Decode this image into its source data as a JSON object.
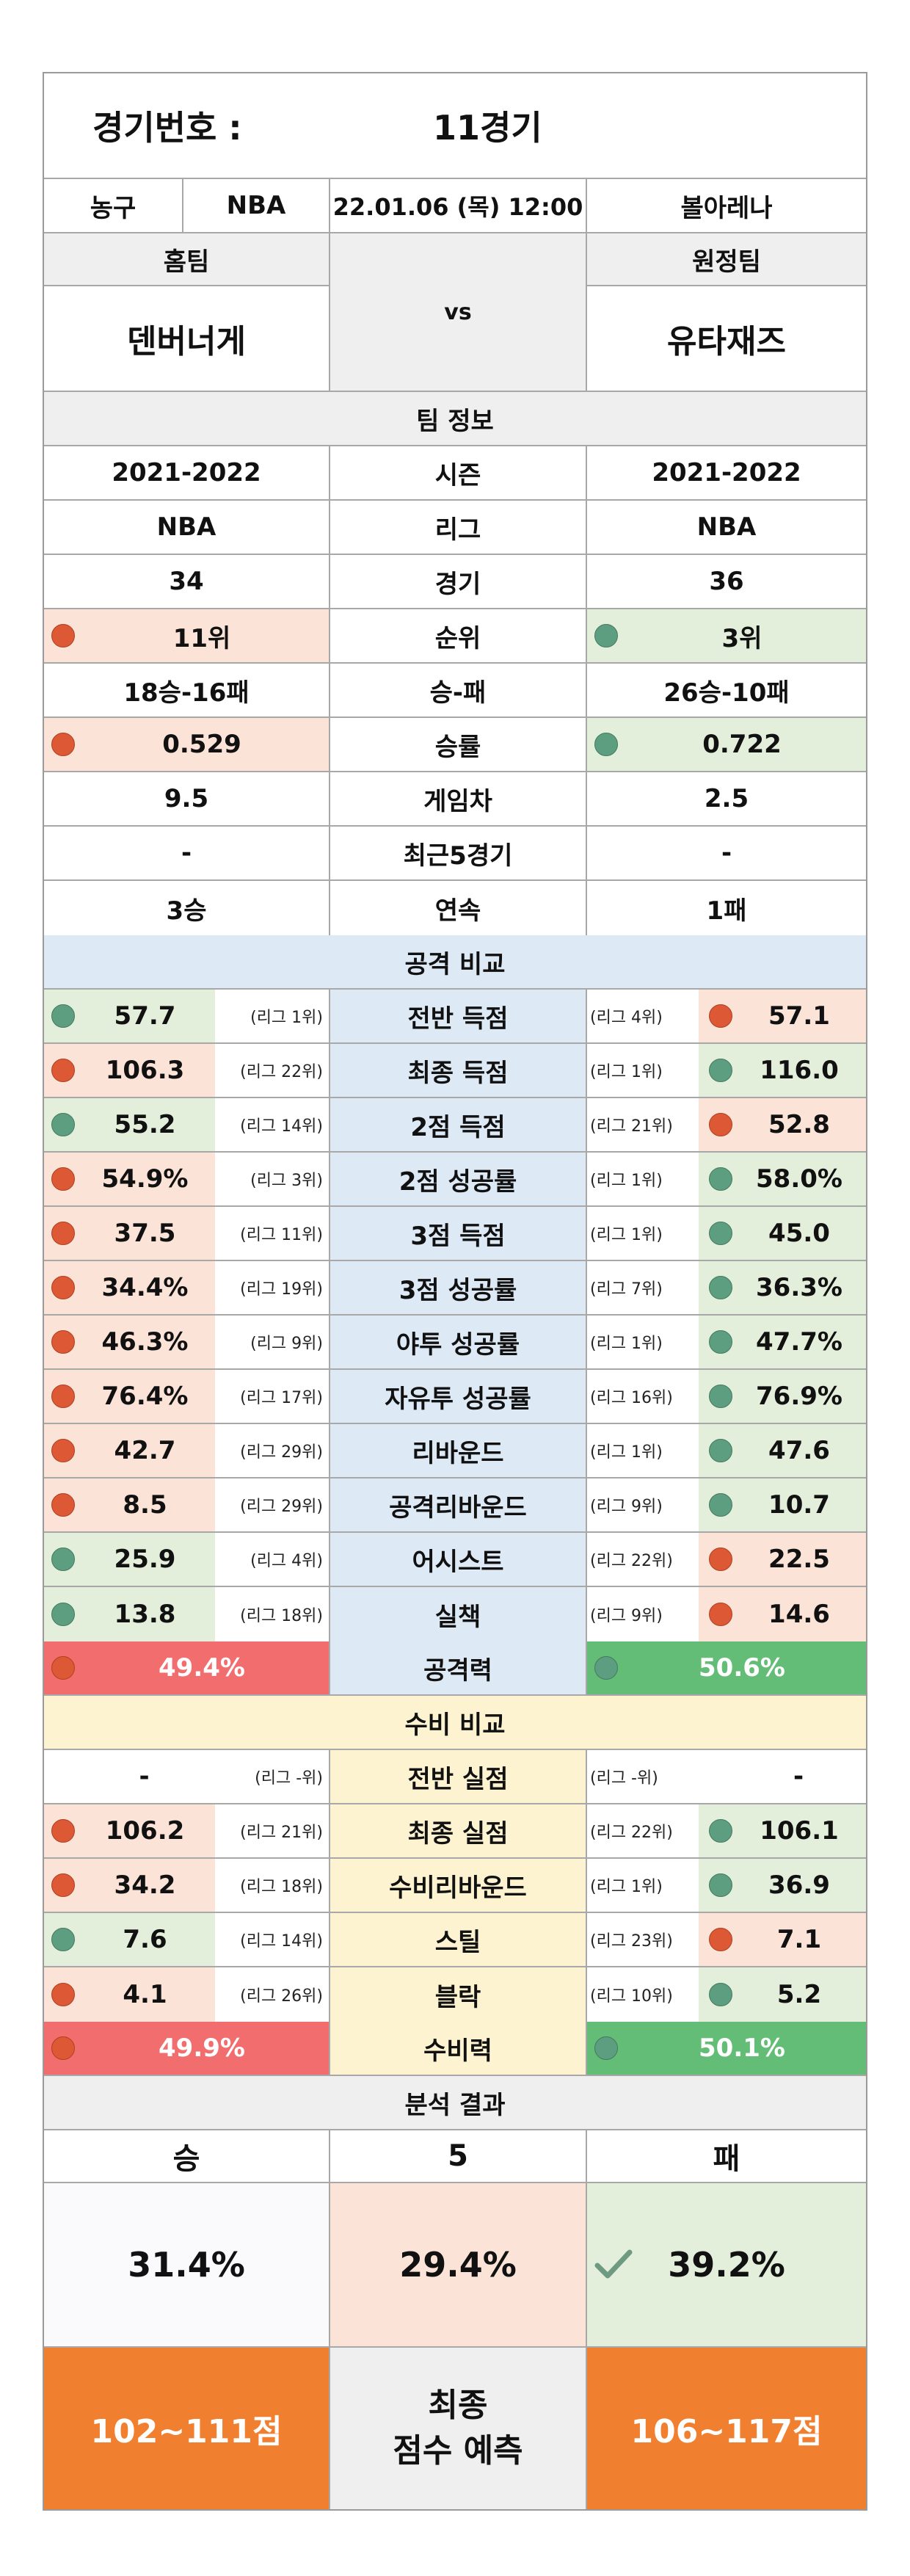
{
  "header": {
    "label": "경기번호 :",
    "game": "11경기"
  },
  "info": {
    "sport": "농구",
    "league": "NBA",
    "datetime": "22.01.06 (목) 12:00",
    "venue": "볼아레나"
  },
  "teams": {
    "home_label": "홈팀",
    "away_label": "원정팀",
    "vs": "vs",
    "home": "덴버너게",
    "away": "유타재즈"
  },
  "team_info": {
    "title": "팀 정보",
    "rows": [
      {
        "label": "시즌",
        "home": "2021-2022",
        "away": "2021-2022"
      },
      {
        "label": "리그",
        "home": "NBA",
        "away": "NBA"
      },
      {
        "label": "경기",
        "home": "34",
        "away": "36"
      },
      {
        "label": "순위",
        "home": "11위",
        "away": "3위",
        "home_dot": "red",
        "away_dot": "green"
      },
      {
        "label": "승-패",
        "home": "18승-16패",
        "away": "26승-10패"
      },
      {
        "label": "승률",
        "home": "0.529",
        "away": "0.722",
        "home_dot": "red",
        "away_dot": "green"
      },
      {
        "label": "게임차",
        "home": "9.5",
        "away": "2.5"
      },
      {
        "label": "최근5경기",
        "home": "-",
        "away": "-"
      },
      {
        "label": "연속",
        "home": "3승",
        "away": "1패"
      }
    ]
  },
  "attack": {
    "title": "공격 비교",
    "rows": [
      {
        "label": "전반 득점",
        "home": "57.7",
        "home_rank": "(리그 1위)",
        "away": "57.1",
        "away_rank": "(리그 4위)",
        "home_dot": "green",
        "away_dot": "red"
      },
      {
        "label": "최종 득점",
        "home": "106.3",
        "home_rank": "(리그 22위)",
        "away": "116.0",
        "away_rank": "(리그 1위)",
        "home_dot": "red",
        "away_dot": "green"
      },
      {
        "label": "2점 득점",
        "home": "55.2",
        "home_rank": "(리그 14위)",
        "away": "52.8",
        "away_rank": "(리그 21위)",
        "home_dot": "green",
        "away_dot": "red"
      },
      {
        "label": "2점 성공률",
        "home": "54.9%",
        "home_rank": "(리그 3위)",
        "away": "58.0%",
        "away_rank": "(리그 1위)",
        "home_dot": "red",
        "away_dot": "green"
      },
      {
        "label": "3점 득점",
        "home": "37.5",
        "home_rank": "(리그 11위)",
        "away": "45.0",
        "away_rank": "(리그 1위)",
        "home_dot": "red",
        "away_dot": "green"
      },
      {
        "label": "3점 성공률",
        "home": "34.4%",
        "home_rank": "(리그 19위)",
        "away": "36.3%",
        "away_rank": "(리그 7위)",
        "home_dot": "red",
        "away_dot": "green"
      },
      {
        "label": "야투 성공률",
        "home": "46.3%",
        "home_rank": "(리그 9위)",
        "away": "47.7%",
        "away_rank": "(리그 1위)",
        "home_dot": "red",
        "away_dot": "green"
      },
      {
        "label": "자유투 성공률",
        "home": "76.4%",
        "home_rank": "(리그 17위)",
        "away": "76.9%",
        "away_rank": "(리그 16위)",
        "home_dot": "red",
        "away_dot": "green"
      },
      {
        "label": "리바운드",
        "home": "42.7",
        "home_rank": "(리그 29위)",
        "away": "47.6",
        "away_rank": "(리그 1위)",
        "home_dot": "red",
        "away_dot": "green"
      },
      {
        "label": "공격리바운드",
        "home": "8.5",
        "home_rank": "(리그 29위)",
        "away": "10.7",
        "away_rank": "(리그 9위)",
        "home_dot": "red",
        "away_dot": "green"
      },
      {
        "label": "어시스트",
        "home": "25.9",
        "home_rank": "(리그 4위)",
        "away": "22.5",
        "away_rank": "(리그 22위)",
        "home_dot": "green",
        "away_dot": "red"
      },
      {
        "label": "실책",
        "home": "13.8",
        "home_rank": "(리그 18위)",
        "away": "14.6",
        "away_rank": "(리그 9위)",
        "home_dot": "green",
        "away_dot": "red"
      }
    ],
    "power": {
      "label": "공격력",
      "home": "49.4%",
      "away": "50.6%"
    }
  },
  "defense": {
    "title": "수비 비교",
    "rows": [
      {
        "label": "전반 실점",
        "home": "-",
        "home_rank": "(리그 -위)",
        "away": "-",
        "away_rank": "(리그 -위)",
        "home_dot": "none",
        "away_dot": "none"
      },
      {
        "label": "최종 실점",
        "home": "106.2",
        "home_rank": "(리그 21위)",
        "away": "106.1",
        "away_rank": "(리그 22위)",
        "home_dot": "red",
        "away_dot": "green"
      },
      {
        "label": "수비리바운드",
        "home": "34.2",
        "home_rank": "(리그 18위)",
        "away": "36.9",
        "away_rank": "(리그 1위)",
        "home_dot": "red",
        "away_dot": "green"
      },
      {
        "label": "스틸",
        "home": "7.6",
        "home_rank": "(리그 14위)",
        "away": "7.1",
        "away_rank": "(리그 23위)",
        "home_dot": "green",
        "away_dot": "red"
      },
      {
        "label": "블락",
        "home": "4.1",
        "home_rank": "(리그 26위)",
        "away": "5.2",
        "away_rank": "(리그 10위)",
        "home_dot": "red",
        "away_dot": "green"
      }
    ],
    "power": {
      "label": "수비력",
      "home": "49.9%",
      "away": "50.1%"
    }
  },
  "result": {
    "title": "분석 결과",
    "win_label": "승",
    "draw_label": "5",
    "lose_label": "패",
    "win_pct": "31.4%",
    "draw_pct": "29.4%",
    "lose_pct": "39.2%",
    "home_score": "102~111점",
    "predict_line1": "최종",
    "predict_line2": "점수 예측",
    "away_score": "106~117점"
  },
  "colors": {
    "red_dot": "#dd5834",
    "green_dot": "#5e9e80",
    "red_bar": "#f26d6d",
    "green_bar": "#63bd76",
    "orange": "#f07f2f"
  }
}
